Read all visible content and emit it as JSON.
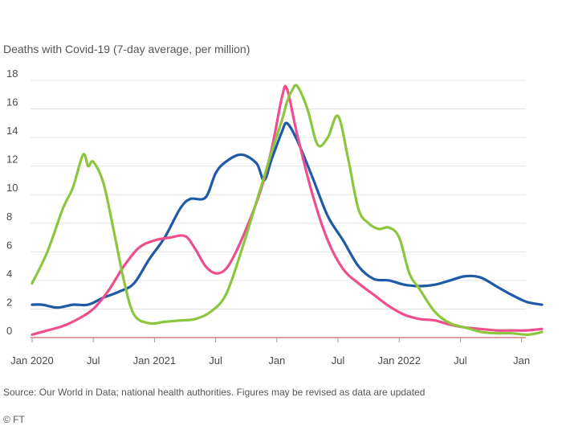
{
  "chart_data": {
    "type": "line",
    "subtitle": "Deaths with Covid-19 (7-day average, per million)",
    "ylim": [
      0,
      18
    ],
    "yticks": [
      "18",
      "16",
      "14",
      "12",
      "10",
      "8",
      "6",
      "4",
      "2",
      "0"
    ],
    "xlim": [
      0,
      100
    ],
    "xticks": [
      {
        "pos": 0,
        "label": "Jan 2020"
      },
      {
        "pos": 12,
        "label": "Jul"
      },
      {
        "pos": 24,
        "label": "Jan 2021"
      },
      {
        "pos": 36,
        "label": "Jul"
      },
      {
        "pos": 48,
        "label": "Jan"
      },
      {
        "pos": 60,
        "label": "Jul"
      },
      {
        "pos": 72,
        "label": "Jan 2022"
      },
      {
        "pos": 84,
        "label": "Jul"
      },
      {
        "pos": 96,
        "label": "Jan"
      }
    ],
    "grid": true,
    "legend": "none",
    "series": [
      {
        "color": "#1f5aa6",
        "x": [
          0,
          2,
          5,
          8,
          11,
          14,
          17,
          20,
          23,
          26,
          29,
          31,
          34,
          36,
          38,
          41,
          44,
          45.5,
          47,
          49,
          50,
          52,
          55,
          58,
          61,
          64,
          67,
          70,
          73,
          76,
          79,
          82,
          85,
          88,
          91,
          94,
          97,
          100
        ],
        "y": [
          2.3,
          2.3,
          2.1,
          2.3,
          2.3,
          2.8,
          3.2,
          3.8,
          5.5,
          7.0,
          9.0,
          9.7,
          9.8,
          11.5,
          12.3,
          12.8,
          12.2,
          11.0,
          12.5,
          14.4,
          15.0,
          13.8,
          11.2,
          8.5,
          6.8,
          5.0,
          4.1,
          4.0,
          3.7,
          3.6,
          3.7,
          4.0,
          4.3,
          4.2,
          3.6,
          3.0,
          2.5,
          2.3
        ]
      },
      {
        "color": "#ee4d8e",
        "x": [
          0,
          3,
          6,
          9,
          12,
          15,
          18,
          21,
          24,
          27,
          30,
          32,
          34,
          36,
          38,
          40,
          43,
          45,
          47,
          49,
          50,
          52,
          55,
          58,
          61,
          64,
          67,
          70,
          73,
          76,
          79,
          82,
          85,
          88,
          91,
          94,
          97,
          100
        ],
        "y": [
          0.2,
          0.5,
          0.8,
          1.3,
          2.0,
          3.3,
          5.0,
          6.3,
          6.8,
          7.0,
          7.1,
          6.2,
          5.0,
          4.5,
          4.8,
          6.0,
          8.5,
          10.5,
          13.2,
          16.8,
          17.4,
          14.2,
          10.0,
          6.8,
          4.8,
          3.8,
          3.0,
          2.2,
          1.6,
          1.3,
          1.2,
          0.9,
          0.7,
          0.6,
          0.5,
          0.5,
          0.5,
          0.6
        ]
      },
      {
        "color": "#8cc63f",
        "x": [
          0,
          3,
          6,
          8,
          10,
          11,
          12,
          14,
          16,
          18,
          20,
          23,
          26,
          29,
          32,
          35,
          38,
          41,
          44,
          47,
          49,
          50,
          51,
          52,
          54,
          56,
          58,
          60,
          62,
          64,
          66,
          68,
          70,
          72,
          74,
          76,
          79,
          82,
          85,
          88,
          91,
          94,
          97,
          99,
          100
        ],
        "y": [
          3.8,
          6.0,
          9.0,
          10.5,
          12.8,
          12.0,
          12.3,
          10.8,
          7.5,
          4.0,
          1.6,
          1.0,
          1.1,
          1.2,
          1.3,
          1.8,
          3.0,
          6.0,
          9.5,
          13.0,
          15.2,
          16.5,
          17.3,
          17.6,
          16.0,
          13.5,
          14.0,
          15.5,
          12.5,
          9.0,
          8.0,
          7.6,
          7.7,
          7.0,
          4.5,
          3.4,
          1.8,
          1.0,
          0.7,
          0.4,
          0.3,
          0.3,
          0.2,
          0.3,
          0.4
        ]
      }
    ]
  },
  "source": {
    "line1": "Source: Our World in Data; national health authorities. Figures may be revised as data are updated",
    "line2": "© FT"
  }
}
